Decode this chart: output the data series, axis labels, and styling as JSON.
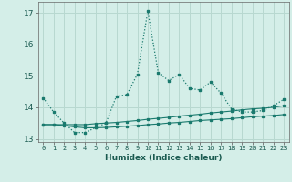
{
  "xlabel": "Humidex (Indice chaleur)",
  "xlim": [
    -0.5,
    23.5
  ],
  "ylim": [
    12.9,
    17.35
  ],
  "yticks": [
    13,
    14,
    15,
    16,
    17
  ],
  "xticks": [
    0,
    1,
    2,
    3,
    4,
    5,
    6,
    7,
    8,
    9,
    10,
    11,
    12,
    13,
    14,
    15,
    16,
    17,
    18,
    19,
    20,
    21,
    22,
    23
  ],
  "background_color": "#d4eee8",
  "grid_color": "#b8d8d0",
  "line_color": "#1a7a6e",
  "line1_x": [
    0,
    1,
    2,
    3,
    4,
    5,
    6,
    7,
    8,
    9,
    10,
    11,
    12,
    13,
    14,
    15,
    16,
    17,
    18,
    19,
    20,
    21,
    22,
    23
  ],
  "line1_y": [
    14.3,
    13.85,
    13.5,
    13.2,
    13.2,
    13.35,
    13.5,
    14.35,
    14.4,
    15.05,
    17.05,
    15.1,
    14.85,
    15.05,
    14.6,
    14.55,
    14.8,
    14.45,
    13.95,
    13.85,
    13.85,
    13.9,
    14.05,
    14.25
  ],
  "line2_x": [
    0,
    1,
    2,
    3,
    4,
    5,
    6,
    7,
    8,
    9,
    10,
    11,
    12,
    13,
    14,
    15,
    16,
    17,
    18,
    19,
    20,
    21,
    22,
    23
  ],
  "line2_y": [
    13.45,
    13.45,
    13.45,
    13.45,
    13.45,
    13.48,
    13.5,
    13.52,
    13.55,
    13.58,
    13.62,
    13.65,
    13.68,
    13.72,
    13.75,
    13.78,
    13.82,
    13.85,
    13.88,
    13.92,
    13.95,
    13.97,
    14.0,
    14.05
  ],
  "line3_x": [
    0,
    1,
    2,
    3,
    4,
    5,
    6,
    7,
    8,
    9,
    10,
    11,
    12,
    13,
    14,
    15,
    16,
    17,
    18,
    19,
    20,
    21,
    22,
    23
  ],
  "line3_y": [
    13.45,
    13.45,
    13.42,
    13.38,
    13.35,
    13.35,
    13.36,
    13.38,
    13.4,
    13.42,
    13.45,
    13.47,
    13.5,
    13.52,
    13.55,
    13.58,
    13.6,
    13.62,
    13.64,
    13.67,
    13.7,
    13.72,
    13.74,
    13.77
  ]
}
